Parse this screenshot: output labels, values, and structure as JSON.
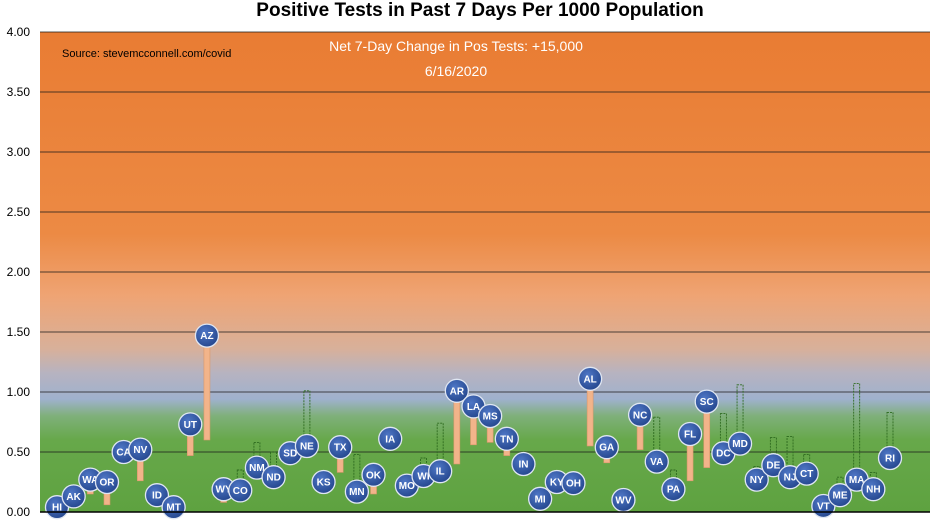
{
  "chart_data": {
    "type": "scatter",
    "title": "Positive Tests in Past 7 Days Per 1000 Population",
    "source": "Source: stevemcconnell.com/covid",
    "annotation_line1": "Net 7-Day Change in Pos Tests: +15,000",
    "annotation_line2": "6/16/2020",
    "ylim": [
      0,
      4
    ],
    "yticks": [
      "0.00",
      "0.50",
      "1.00",
      "1.50",
      "2.00",
      "2.50",
      "3.00",
      "3.50",
      "4.00"
    ],
    "grid": true,
    "colors": {
      "top_band": "#ea7e34",
      "mid_band": "#a8b4c8",
      "bottom_band": "#66a844",
      "bubble": "#2f56a3",
      "increase_bar": "#f2b48a",
      "decrease_bar": "#5a9a3a"
    },
    "points": [
      {
        "label": "HI",
        "value": 0.04,
        "prev": 0.04
      },
      {
        "label": "AK",
        "value": 0.13,
        "prev": 0.13
      },
      {
        "label": "WA",
        "value": 0.27,
        "prev": 0.15
      },
      {
        "label": "OR",
        "value": 0.25,
        "prev": 0.06
      },
      {
        "label": "CA",
        "value": 0.5,
        "prev": 0.48
      },
      {
        "label": "NV",
        "value": 0.52,
        "prev": 0.26
      },
      {
        "label": "ID",
        "value": 0.14,
        "prev": 0.12
      },
      {
        "label": "MT",
        "value": 0.04,
        "prev": 0.05
      },
      {
        "label": "UT",
        "value": 0.73,
        "prev": 0.47
      },
      {
        "label": "AZ",
        "value": 1.47,
        "prev": 0.6
      },
      {
        "label": "WY",
        "value": 0.19,
        "prev": 0.08
      },
      {
        "label": "CO",
        "value": 0.18,
        "prev": 0.35
      },
      {
        "label": "NM",
        "value": 0.37,
        "prev": 0.58
      },
      {
        "label": "ND",
        "value": 0.29,
        "prev": 0.5
      },
      {
        "label": "SD",
        "value": 0.49,
        "prev": 0.46
      },
      {
        "label": "NE",
        "value": 0.55,
        "prev": 1.01
      },
      {
        "label": "KS",
        "value": 0.25,
        "prev": 0.23
      },
      {
        "label": "TX",
        "value": 0.54,
        "prev": 0.33
      },
      {
        "label": "MN",
        "value": 0.17,
        "prev": 0.48
      },
      {
        "label": "OK",
        "value": 0.31,
        "prev": 0.15
      },
      {
        "label": "IA",
        "value": 0.61,
        "prev": 0.66
      },
      {
        "label": "MO",
        "value": 0.22,
        "prev": 0.3
      },
      {
        "label": "WI",
        "value": 0.3,
        "prev": 0.45
      },
      {
        "label": "IL",
        "value": 0.34,
        "prev": 0.74
      },
      {
        "label": "AR",
        "value": 1.01,
        "prev": 0.4
      },
      {
        "label": "LA",
        "value": 0.88,
        "prev": 0.56
      },
      {
        "label": "MS",
        "value": 0.8,
        "prev": 0.58
      },
      {
        "label": "TN",
        "value": 0.61,
        "prev": 0.47
      },
      {
        "label": "IN",
        "value": 0.4,
        "prev": 0.4
      },
      {
        "label": "MI",
        "value": 0.11,
        "prev": 0.13
      },
      {
        "label": "KY",
        "value": 0.25,
        "prev": 0.27
      },
      {
        "label": "OH",
        "value": 0.24,
        "prev": 0.25
      },
      {
        "label": "AL",
        "value": 1.11,
        "prev": 0.55
      },
      {
        "label": "GA",
        "value": 0.54,
        "prev": 0.41
      },
      {
        "label": "WV",
        "value": 0.1,
        "prev": 0.06
      },
      {
        "label": "NC",
        "value": 0.81,
        "prev": 0.52
      },
      {
        "label": "VA",
        "value": 0.42,
        "prev": 0.79
      },
      {
        "label": "PA",
        "value": 0.19,
        "prev": 0.35
      },
      {
        "label": "FL",
        "value": 0.65,
        "prev": 0.26
      },
      {
        "label": "SC",
        "value": 0.92,
        "prev": 0.37
      },
      {
        "label": "DC",
        "value": 0.49,
        "prev": 0.82
      },
      {
        "label": "MD",
        "value": 0.57,
        "prev": 1.06
      },
      {
        "label": "NY",
        "value": 0.27,
        "prev": 0.38
      },
      {
        "label": "DE",
        "value": 0.39,
        "prev": 0.62
      },
      {
        "label": "NJ",
        "value": 0.29,
        "prev": 0.63
      },
      {
        "label": "CT",
        "value": 0.32,
        "prev": 0.48
      },
      {
        "label": "VT",
        "value": 0.05,
        "prev": 0.08
      },
      {
        "label": "ME",
        "value": 0.14,
        "prev": 0.29
      },
      {
        "label": "MA",
        "value": 0.27,
        "prev": 1.07
      },
      {
        "label": "NH",
        "value": 0.19,
        "prev": 0.33
      },
      {
        "label": "RI",
        "value": 0.45,
        "prev": 0.83
      }
    ]
  }
}
